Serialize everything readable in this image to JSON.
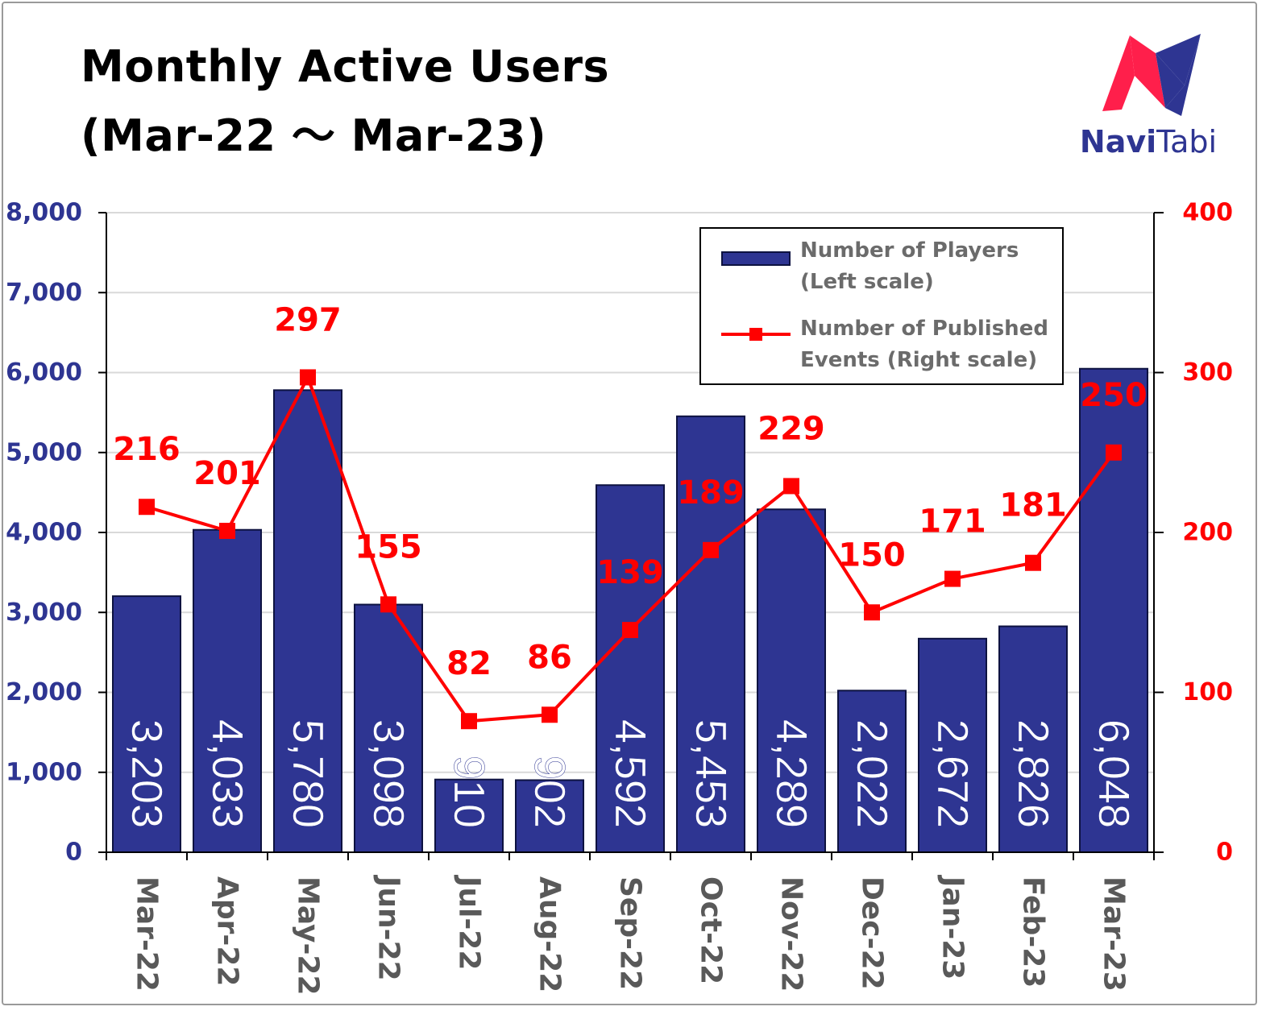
{
  "title": {
    "line1": "Monthly Active Users",
    "line2": "(Mar-22 ～ Mar-23)"
  },
  "logo": {
    "text_bold": "Navi",
    "text_regular": "Tabi",
    "colors": {
      "red": "#ff1f4b",
      "navy": "#2e3592"
    }
  },
  "legend": {
    "position": "top-right",
    "players_label": "Number of Players\n(Left scale)",
    "events_label": "Number of Published\nEvents (Right scale)"
  },
  "chart_data": {
    "type": "bar",
    "categories": [
      "Mar-22",
      "Apr-22",
      "May-22",
      "Jun-22",
      "Jul-22",
      "Aug-22",
      "Sep-22",
      "Oct-22",
      "Nov-22",
      "Dec-22",
      "Jan-23",
      "Feb-23",
      "Mar-23"
    ],
    "series": [
      {
        "name": "Number of Players (Left scale)",
        "type": "bar",
        "axis": "left",
        "color": "#2e3592",
        "values": [
          3203,
          4033,
          5780,
          3098,
          910,
          902,
          4592,
          5453,
          4289,
          2022,
          2672,
          2826,
          6048
        ],
        "labels": [
          "3,203",
          "4,033",
          "5,780",
          "3,098",
          "910",
          "902",
          "4,592",
          "5,453",
          "4,289",
          "2,022",
          "2,672",
          "2,826",
          "6,048"
        ]
      },
      {
        "name": "Number of Published Events (Right scale)",
        "type": "line",
        "axis": "right",
        "color": "#ff0000",
        "marker": "square",
        "values": [
          216,
          201,
          297,
          155,
          82,
          86,
          139,
          189,
          229,
          150,
          171,
          181,
          250
        ],
        "labels": [
          "216",
          "201",
          "297",
          "155",
          "82",
          "86",
          "139",
          "189",
          "229",
          "150",
          "171",
          "181",
          "250"
        ]
      }
    ],
    "left_axis": {
      "ylim": [
        0,
        8000
      ],
      "ticks": [
        "0",
        "1,000",
        "2,000",
        "3,000",
        "4,000",
        "5,000",
        "6,000",
        "7,000",
        "8,000"
      ],
      "color": "#2e3592"
    },
    "right_axis": {
      "ylim": [
        0,
        400
      ],
      "ticks": [
        "0",
        "100",
        "200",
        "300",
        "400"
      ],
      "color": "#ff0000"
    },
    "x_tick_color": "#595959",
    "grid": true,
    "title": "Monthly Active Users (Mar-22 ～ Mar-23)"
  }
}
